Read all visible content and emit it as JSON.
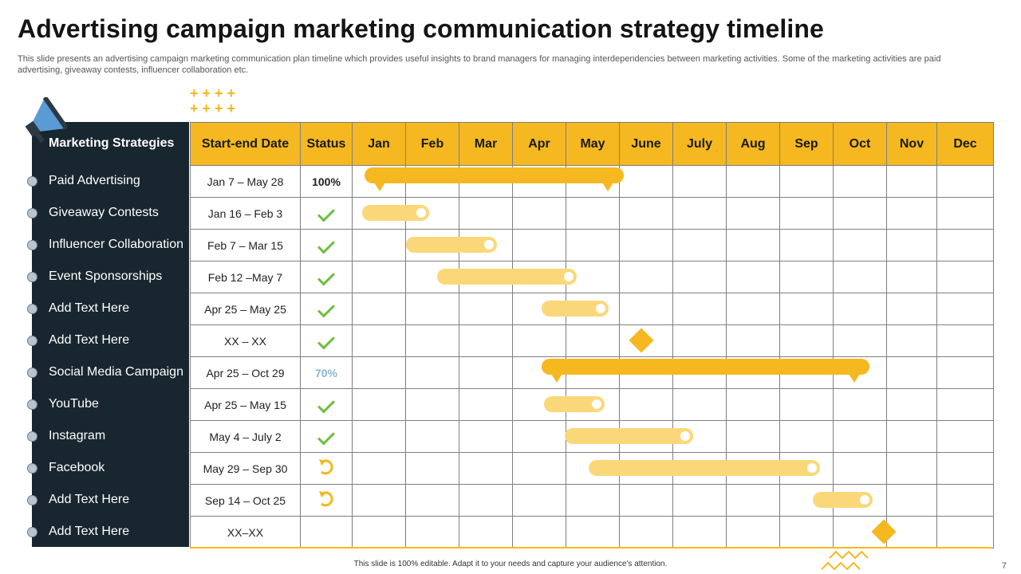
{
  "slide": {
    "title": "Advertising campaign marketing communication strategy timeline",
    "subtitle": "This slide presents an advertising campaign marketing communication plan timeline which provides useful insights to brand managers for managing interdependencies between marketing activities. Some of the marketing activities are paid advertising, giveaway contests, influencer collaboration etc.",
    "footer": "This slide is 100% editable.  Adapt it to your needs and capture your audience's attention.",
    "page_number": "7"
  },
  "colors": {
    "accent": "#f5b820",
    "accent_light": "#fad87a",
    "panel": "#182630",
    "check": "#6cbf3c"
  },
  "table": {
    "headers": {
      "strategies": "Marketing Strategies",
      "dates": "Start-end Date",
      "status": "Status",
      "months": [
        "Jan",
        "Feb",
        "Mar",
        "Apr",
        "May",
        "June",
        "July",
        "Aug",
        "Sep",
        "Oct",
        "Nov",
        "Dec"
      ]
    },
    "rows": [
      {
        "name": "Paid Advertising",
        "dates": "Jan 7 – May 28",
        "status": "100%",
        "status_icon": ""
      },
      {
        "name": "Giveaway Contests",
        "dates": "Jan 16 – Feb 3",
        "status": "",
        "status_icon": "check-icon"
      },
      {
        "name": "Influencer  Collaboration",
        "dates": "Feb 7 – Mar 15",
        "status": "",
        "status_icon": "check-icon"
      },
      {
        "name": "Event Sponsorships",
        "dates": "Feb 12 –May 7",
        "status": "",
        "status_icon": "check-icon"
      },
      {
        "name": "Add Text Here",
        "dates": "Apr 25 – May 25",
        "status": "",
        "status_icon": "check-icon"
      },
      {
        "name": "Add Text Here",
        "dates": "XX – XX",
        "status": "",
        "status_icon": "check-icon"
      },
      {
        "name": "Social Media Campaign",
        "dates": "Apr 25 – Oct 29",
        "status": "70%",
        "status_icon": ""
      },
      {
        "name": "YouTube",
        "dates": "Apr 25 – May 15",
        "status": "",
        "status_icon": "check-icon"
      },
      {
        "name": "Instagram",
        "dates": "May 4 – July 2",
        "status": "",
        "status_icon": "check-icon"
      },
      {
        "name": "Facebook",
        "dates": "May 29 – Sep 30",
        "status": "",
        "status_icon": "in-progress-icon"
      },
      {
        "name": "Add Text Here",
        "dates": "Sep 14 – Oct 25",
        "status": "",
        "status_icon": "in-progress-icon"
      },
      {
        "name": "Add Text Here",
        "dates": "XX–XX",
        "status": "",
        "status_icon": ""
      }
    ]
  },
  "icons": {
    "megaphone": "megaphone-icon",
    "decor_plus": "plus-pattern-icon",
    "decor_zigzag": "zigzag-icon"
  }
}
